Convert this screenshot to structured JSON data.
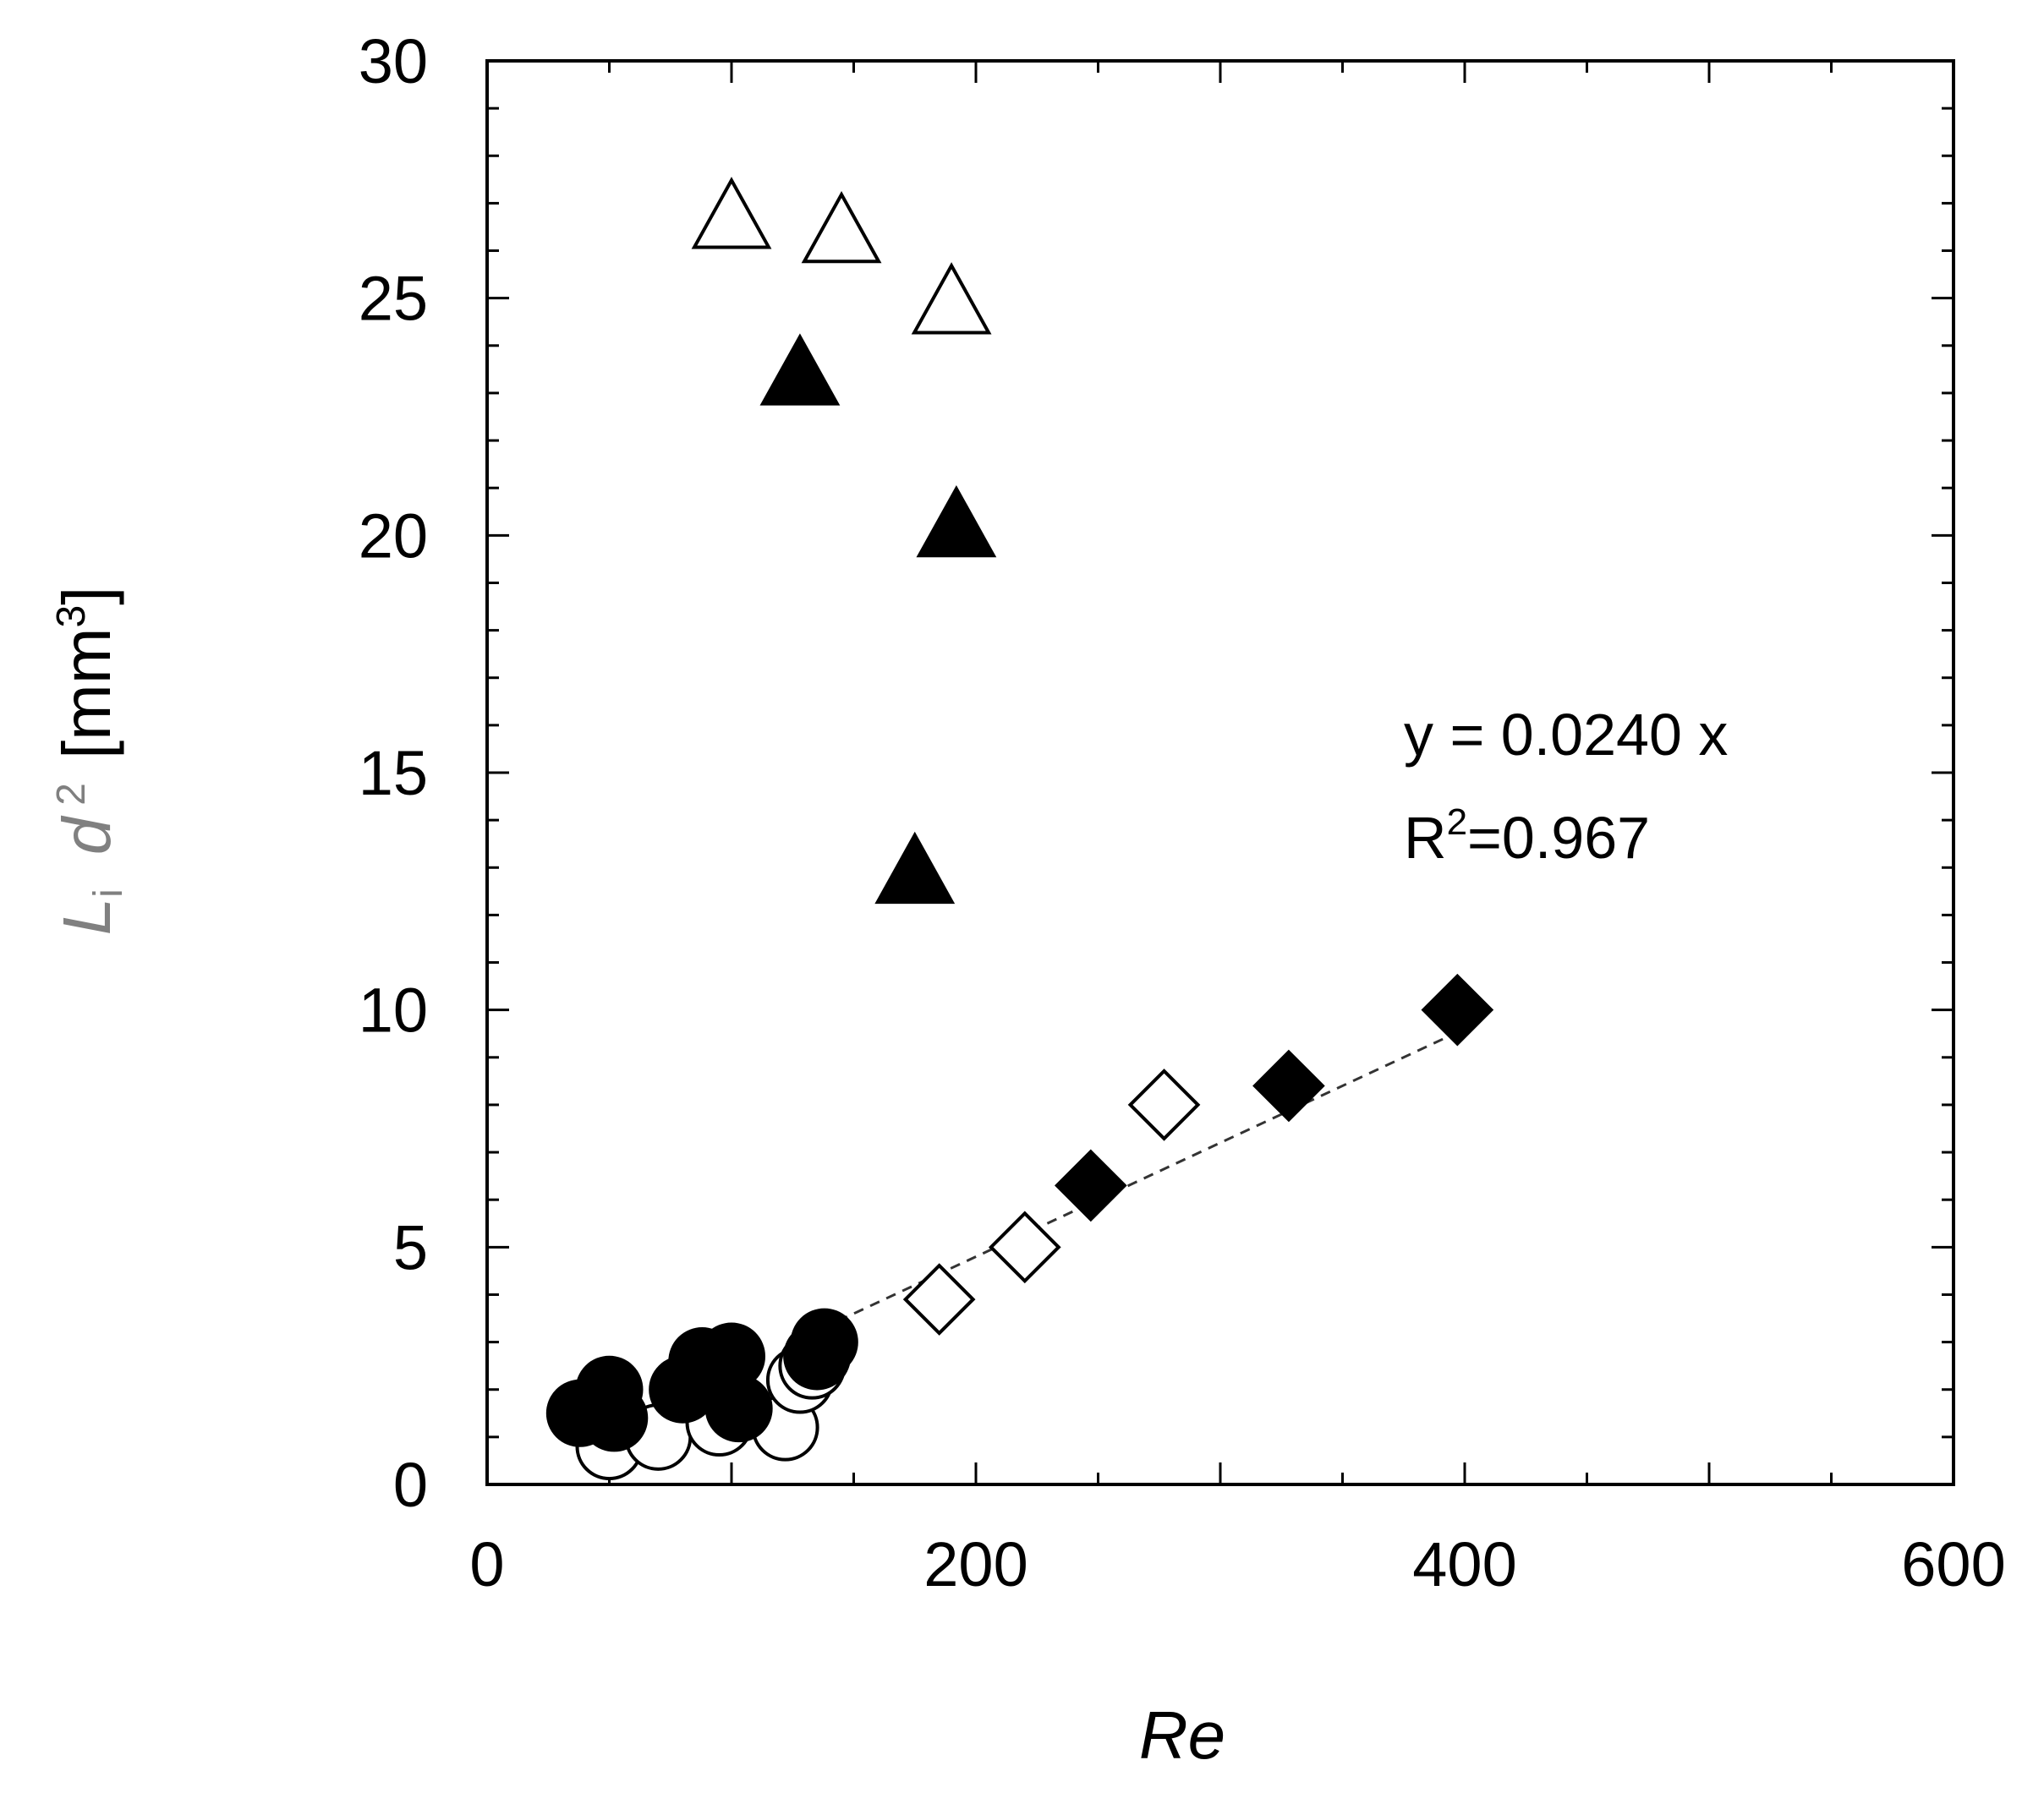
{
  "chart_data": {
    "type": "scatter",
    "title": "",
    "xlabel": "Re",
    "ylabel": {
      "italic_main": "L",
      "sub": "i",
      "italic_d": "d",
      "sup": "2",
      "unit_open": "[mm",
      "unit_sup": "3",
      "unit_close": "]"
    },
    "xlim": [
      0,
      600
    ],
    "ylim": [
      0,
      30
    ],
    "x_ticks": [
      0,
      200,
      400,
      600
    ],
    "y_ticks": [
      0,
      5,
      10,
      15,
      20,
      25,
      30
    ],
    "grid": false,
    "series": [
      {
        "marker": "triangle",
        "fill": "none",
        "points": [
          [
            100,
            26.7
          ],
          [
            145,
            26.4
          ],
          [
            190,
            24.9
          ]
        ]
      },
      {
        "marker": "triangle",
        "fill": "black",
        "points": [
          [
            128,
            23.4
          ],
          [
            175,
            12.9
          ],
          [
            192,
            20.2
          ]
        ]
      },
      {
        "marker": "diamond",
        "fill": "none",
        "points": [
          [
            185,
            3.9
          ],
          [
            220,
            5.0
          ],
          [
            277,
            8.0
          ]
        ]
      },
      {
        "marker": "diamond",
        "fill": "black",
        "points": [
          [
            247,
            6.3
          ],
          [
            328,
            8.4
          ],
          [
            397,
            10.0
          ]
        ]
      },
      {
        "marker": "circle",
        "fill": "none",
        "points": [
          [
            50,
            0.8
          ],
          [
            70,
            1.0
          ],
          [
            95,
            1.3
          ],
          [
            122,
            1.2
          ],
          [
            128,
            2.2
          ],
          [
            133,
            2.5
          ]
        ]
      },
      {
        "marker": "circle",
        "fill": "black",
        "points": [
          [
            38,
            1.5
          ],
          [
            50,
            2.0
          ],
          [
            52,
            1.4
          ],
          [
            80,
            2.0
          ],
          [
            88,
            2.6
          ],
          [
            95,
            2.3
          ],
          [
            100,
            2.7
          ],
          [
            103,
            1.6
          ],
          [
            135,
            2.7
          ],
          [
            138,
            3.0
          ]
        ]
      }
    ],
    "fit_line": {
      "slope": 0.024,
      "x_range": [
        137,
        397
      ],
      "style": "dashed"
    },
    "annotation": {
      "eq": "y = 0.0240 x",
      "r2_prefix": "R",
      "r2_sup": "2",
      "r2_value": "=0.967"
    },
    "colors": {
      "marks": "#000000",
      "ylabel": "#808080",
      "axes": "#000000"
    }
  }
}
